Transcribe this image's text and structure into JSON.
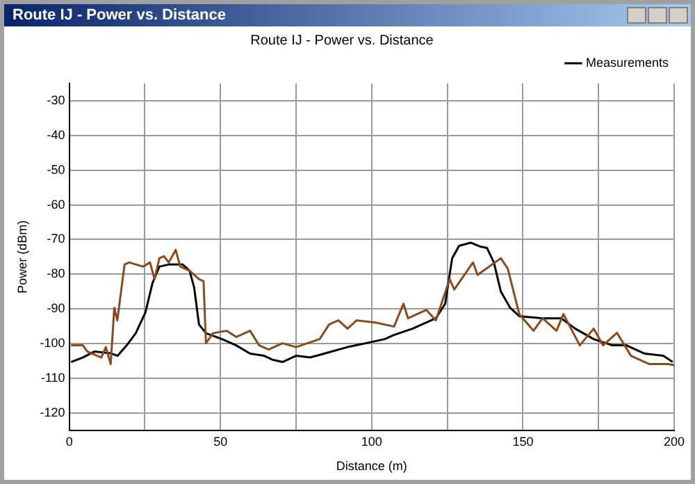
{
  "chart_data": {
    "type": "line",
    "title": "Route IJ - Power vs. Distance",
    "xlabel": "Distance (m)",
    "ylabel": "Power (dBm)",
    "annotations": [
      "Route IJ - Power vs. Distance"
    ],
    "xlim": [
      0,
      200
    ],
    "xticks": [
      0,
      {
        "value": 25,
        "label": null
      },
      50,
      {
        "value": 75,
        "label": null
      },
      100,
      {
        "value": 125,
        "label": null
      },
      150,
      {
        "value": 175,
        "label": null
      },
      200
    ],
    "ylim": [
      -125,
      -25
    ],
    "yticks": [
      -120,
      -110,
      -100,
      -90,
      -80,
      -70,
      -60,
      -50,
      -40,
      -30
    ],
    "grid": true,
    "legend": "top right",
    "marker": "none",
    "line_style": "solid",
    "series": [
      {
        "color": "#8b4a1c",
        "x": [
          0.6,
          4.5,
          6,
          10.6,
          12.1,
          13.7,
          14.9,
          15.9,
          18.3,
          19.8,
          24.4,
          26.7,
          28.2,
          29.8,
          31.3,
          32.9,
          35.2,
          36.7,
          39.8,
          42.9,
          44.4,
          45.2,
          47.5,
          52.1,
          55.2,
          59.8,
          62.8,
          65.9,
          70.5,
          75,
          82.8,
          85.9,
          89,
          92,
          95,
          101.2,
          107.4,
          110.5,
          112,
          118.1,
          121.2,
          125.8,
          127.3,
          133.5,
          135,
          142.7,
          145,
          148.8,
          153.5,
          156.5,
          161.1,
          163.4,
          168.8,
          173.4,
          176.5,
          181.1,
          185.7,
          191.8,
          197.9,
          200
        ],
        "values": [
          -100.5,
          -100.5,
          -102.3,
          -104,
          -101,
          -105.9,
          -89.7,
          -93.3,
          -77.2,
          -76.6,
          -77.8,
          -76.6,
          -81.4,
          -75.4,
          -74.8,
          -76.6,
          -73,
          -77.8,
          -79,
          -81.4,
          -82,
          -99.9,
          -97,
          -96.3,
          -98.1,
          -96.3,
          -100.5,
          -101.7,
          -99.9,
          -101,
          -98.7,
          -94.5,
          -93.3,
          -95.7,
          -93.3,
          -93.9,
          -95.1,
          -88.5,
          -92.7,
          -90.3,
          -93.3,
          -81.4,
          -84.4,
          -76.6,
          -80.2,
          -75.4,
          -78.4,
          -91.5,
          -96.3,
          -92.7,
          -96.3,
          -91.5,
          -100.5,
          -95.7,
          -100.5,
          -96.9,
          -103.5,
          -105.9,
          -105.9,
          -106.2
        ]
      },
      {
        "name": "Measurements",
        "color": "#000000",
        "x": [
          0.6,
          4.5,
          8.3,
          13.7,
          16,
          19,
          22,
          25.2,
          27.5,
          29.8,
          32.9,
          37.5,
          39.8,
          41.3,
          42.9,
          45.2,
          50.5,
          55.2,
          59.8,
          64.4,
          67.4,
          70.5,
          75,
          79.6,
          84.3,
          92,
          98,
          104.3,
          107.4,
          113.5,
          121.2,
          124.3,
          126.6,
          128.9,
          132.7,
          135.8,
          138.1,
          140.4,
          142.7,
          145.8,
          148.8,
          156.5,
          162.7,
          167.3,
          173.4,
          179.6,
          184.2,
          190.3,
          196.4,
          199.5
        ],
        "values": [
          -105.3,
          -104,
          -102.3,
          -102.8,
          -103.5,
          -100.5,
          -97,
          -91,
          -82.6,
          -77.8,
          -77.2,
          -77.2,
          -79,
          -83.8,
          -94.5,
          -97,
          -98.7,
          -100.5,
          -102.9,
          -103.5,
          -104.7,
          -105.3,
          -103.5,
          -104,
          -102.9,
          -101,
          -99.9,
          -98.7,
          -97.5,
          -95.7,
          -92.7,
          -88.5,
          -75.4,
          -71.8,
          -70.9,
          -72,
          -72.4,
          -76.6,
          -85,
          -89.7,
          -92.1,
          -92.7,
          -92.7,
          -95.7,
          -98.7,
          -100.5,
          -100.5,
          -102.9,
          -103.5,
          -105.3
        ]
      }
    ]
  }
}
